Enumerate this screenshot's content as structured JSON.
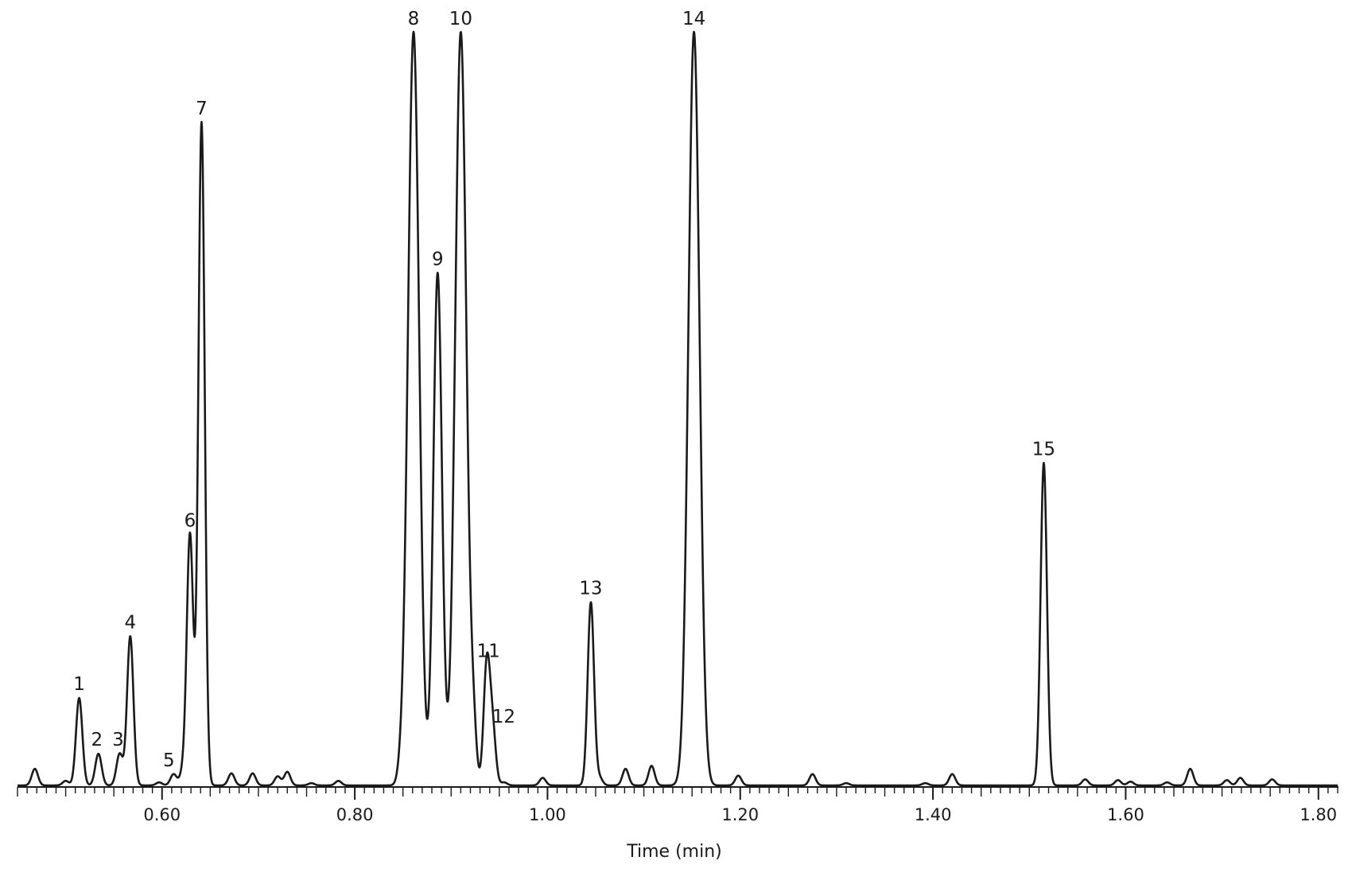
{
  "chart_data": {
    "type": "line",
    "title": "",
    "xlabel": "Time (min)",
    "ylabel": "",
    "xlim": [
      0.45,
      1.82
    ],
    "xticks_major": [
      0.6,
      0.8,
      1.0,
      1.2,
      1.4,
      1.6,
      1.8
    ],
    "xtick_labels": [
      "0.60",
      "0.80",
      "1.00",
      "1.20",
      "1.40",
      "1.60",
      "1.80"
    ],
    "minor_tick_step": 0.01,
    "baseline": 0,
    "ylim": [
      0,
      100
    ],
    "grid": false,
    "legend": "none",
    "line_color": "#1a1a1a",
    "peaks": [
      {
        "label": "1",
        "t": 0.514,
        "h": 11.6
      },
      {
        "label": "2",
        "t": 0.534,
        "h": 4.2
      },
      {
        "label": "3",
        "t": 0.556,
        "h": 4.2
      },
      {
        "label": "4",
        "t": 0.567,
        "h": 19.8
      },
      {
        "label": "5",
        "t": 0.612,
        "h": 1.5
      },
      {
        "label": "6",
        "t": 0.629,
        "h": 33.3
      },
      {
        "label": "7",
        "t": 0.641,
        "h": 88.0
      },
      {
        "label": "8",
        "t": 0.861,
        "h": 100.0
      },
      {
        "label": "9",
        "t": 0.886,
        "h": 68.0
      },
      {
        "label": "10",
        "t": 0.91,
        "h": 100.0
      },
      {
        "label": "11",
        "t": 0.937,
        "h": 16.0
      },
      {
        "label": "12",
        "t": 0.943,
        "h": 7.3
      },
      {
        "label": "13",
        "t": 1.045,
        "h": 24.3
      },
      {
        "label": "14",
        "t": 1.152,
        "h": 100.0
      },
      {
        "label": "15",
        "t": 1.515,
        "h": 42.8
      }
    ],
    "minor_peaks": [
      {
        "t": 0.468,
        "h": 2.2
      },
      {
        "t": 0.5,
        "h": 0.6
      },
      {
        "t": 0.597,
        "h": 0.4
      },
      {
        "t": 0.622,
        "h": 1.8
      },
      {
        "t": 0.672,
        "h": 1.6
      },
      {
        "t": 0.694,
        "h": 1.6
      },
      {
        "t": 0.72,
        "h": 1.2
      },
      {
        "t": 0.73,
        "h": 1.8
      },
      {
        "t": 0.755,
        "h": 0.3
      },
      {
        "t": 0.783,
        "h": 0.6
      },
      {
        "t": 0.848,
        "h": 1.5
      },
      {
        "t": 0.923,
        "h": 6.5
      },
      {
        "t": 0.955,
        "h": 0.4
      },
      {
        "t": 0.995,
        "h": 1.0
      },
      {
        "t": 1.054,
        "h": 1.0
      },
      {
        "t": 1.081,
        "h": 2.2
      },
      {
        "t": 1.108,
        "h": 2.6
      },
      {
        "t": 1.198,
        "h": 1.3
      },
      {
        "t": 1.275,
        "h": 1.5
      },
      {
        "t": 1.31,
        "h": 0.3
      },
      {
        "t": 1.392,
        "h": 0.3
      },
      {
        "t": 1.42,
        "h": 1.5
      },
      {
        "t": 1.558,
        "h": 0.8
      },
      {
        "t": 1.592,
        "h": 0.7
      },
      {
        "t": 1.605,
        "h": 0.5
      },
      {
        "t": 1.643,
        "h": 0.4
      },
      {
        "t": 1.667,
        "h": 2.2
      },
      {
        "t": 1.705,
        "h": 0.7
      },
      {
        "t": 1.719,
        "h": 1.0
      },
      {
        "t": 1.752,
        "h": 0.8
      }
    ]
  }
}
